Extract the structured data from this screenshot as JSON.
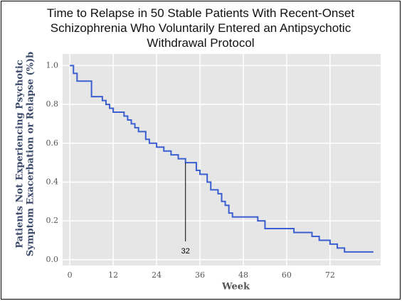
{
  "chart_data": {
    "type": "step",
    "title": "Time to Relapse in 50 Stable Patients With Recent-Onset Schizophrenia Who Voluntarily Entered an Antipsychotic Withdrawal Protocol",
    "xlabel": "Week",
    "ylabel": [
      "Patients Not Experiencing Psychotic",
      "Symptom Exacerbation or Relapse (%)b"
    ],
    "annotation": "32",
    "x": [
      0,
      1,
      1,
      2,
      2,
      6,
      6,
      9,
      9,
      10,
      10,
      11,
      11,
      12,
      12,
      15,
      15,
      16,
      16,
      17,
      17,
      18,
      18,
      19,
      19,
      21,
      21,
      22,
      22,
      24,
      24,
      26,
      26,
      28,
      28,
      30,
      30,
      32,
      32,
      35,
      35,
      36,
      36,
      38,
      38,
      39,
      39,
      41,
      41,
      42,
      42,
      43,
      43,
      44,
      44,
      45,
      45,
      52,
      52,
      54,
      54,
      62,
      62,
      67,
      67,
      69,
      69,
      72,
      72,
      74,
      74,
      76,
      76,
      84
    ],
    "series": [
      {
        "color": "#3b5fd0",
        "values": [
          1.0,
          1.0,
          0.96,
          0.96,
          0.92,
          0.92,
          0.84,
          0.84,
          0.82,
          0.82,
          0.8,
          0.8,
          0.78,
          0.78,
          0.76,
          0.76,
          0.74,
          0.74,
          0.72,
          0.72,
          0.7,
          0.7,
          0.68,
          0.68,
          0.66,
          0.66,
          0.62,
          0.62,
          0.6,
          0.6,
          0.58,
          0.58,
          0.56,
          0.56,
          0.54,
          0.54,
          0.52,
          0.52,
          0.5,
          0.5,
          0.46,
          0.46,
          0.44,
          0.44,
          0.4,
          0.4,
          0.36,
          0.36,
          0.34,
          0.34,
          0.3,
          0.3,
          0.28,
          0.28,
          0.24,
          0.24,
          0.22,
          0.22,
          0.2,
          0.2,
          0.16,
          0.16,
          0.14,
          0.14,
          0.12,
          0.12,
          0.1,
          0.1,
          0.08,
          0.08,
          0.06,
          0.06,
          0.04,
          0.04
        ]
      }
    ],
    "xlim": [
      -2,
      86
    ],
    "xticks": [
      0,
      12,
      24,
      36,
      48,
      60,
      72
    ],
    "ylim": [
      -0.03,
      1.06
    ],
    "yticks": [
      {
        "value": 0,
        "label": "0.0"
      },
      0.2,
      0.4,
      0.6,
      0.8,
      {
        "value": 1,
        "label": "1.0"
      }
    ],
    "grid": true
  }
}
